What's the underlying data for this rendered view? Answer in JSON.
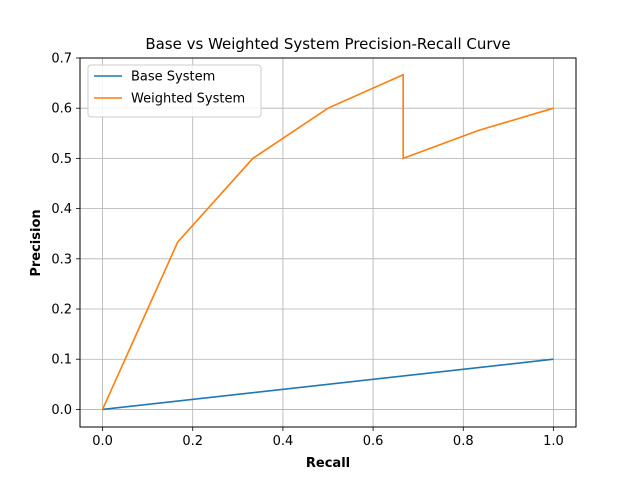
{
  "chart_data": {
    "type": "line",
    "title": "Base vs Weighted System Precision-Recall Curve",
    "xlabel": "Recall",
    "ylabel": "Precision",
    "xlim": [
      -0.05,
      1.05
    ],
    "ylim": [
      -0.035,
      0.7
    ],
    "xticks": [
      "0.0",
      "0.2",
      "0.4",
      "0.6",
      "0.8",
      "1.0"
    ],
    "yticks": [
      "0.0",
      "0.1",
      "0.2",
      "0.3",
      "0.4",
      "0.5",
      "0.6",
      "0.7"
    ],
    "grid": true,
    "legend_position": "top-left",
    "series": [
      {
        "name": "Base System",
        "color": "#1f77b4",
        "points": [
          [
            0.0,
            0.0
          ],
          [
            1.0,
            0.1
          ]
        ]
      },
      {
        "name": "Weighted System",
        "color": "#ff7f0e",
        "points": [
          [
            0.0,
            0.0
          ],
          [
            0.1667,
            0.3333
          ],
          [
            0.3333,
            0.5
          ],
          [
            0.5,
            0.6
          ],
          [
            0.6667,
            0.6667
          ],
          [
            0.6667,
            0.5
          ],
          [
            0.8333,
            0.5556
          ],
          [
            1.0,
            0.6
          ]
        ]
      }
    ]
  }
}
